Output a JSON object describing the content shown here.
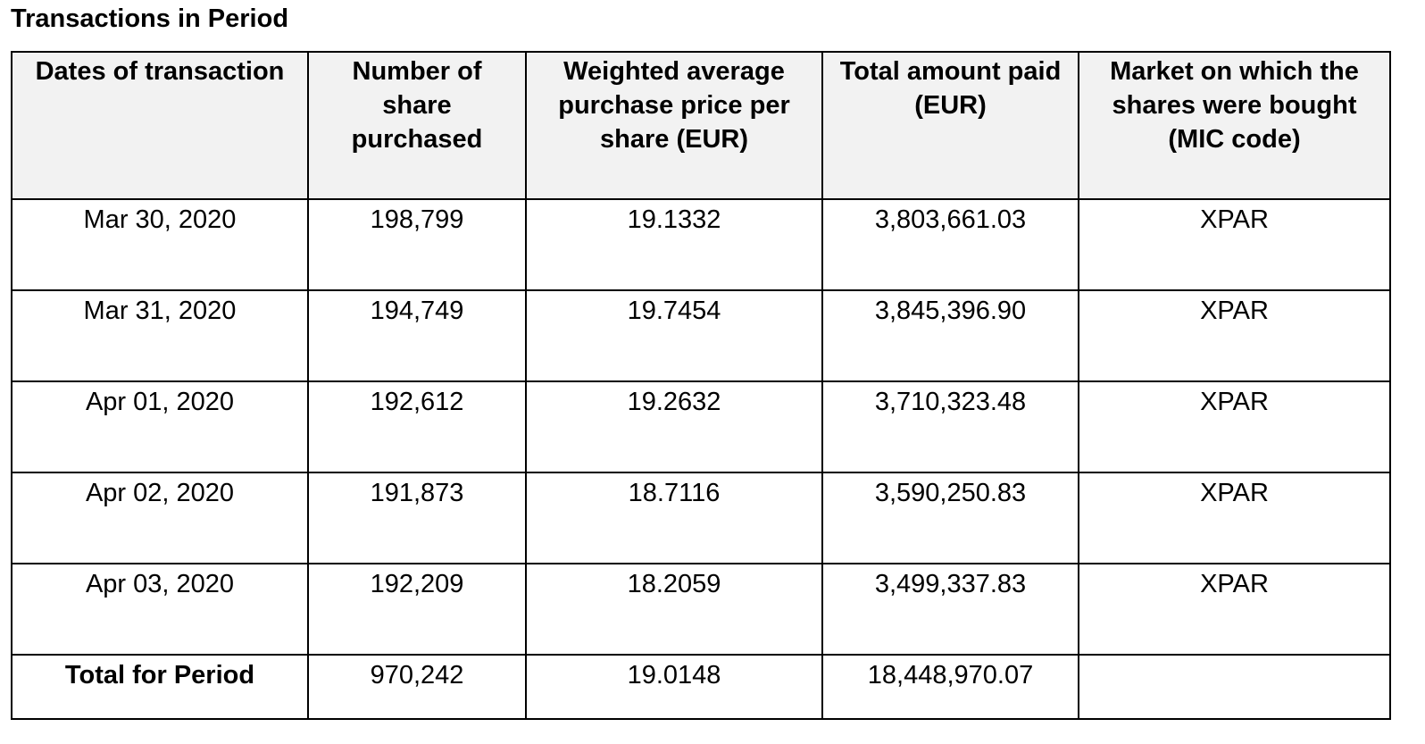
{
  "title": "Transactions in Period",
  "table": {
    "headers": [
      "Dates of transaction",
      "Number of share purchased",
      "Weighted average purchase price per share (EUR)",
      "Total amount paid (EUR)",
      "Market on which the shares were bought (MIC code)"
    ],
    "rows": [
      [
        "Mar 30, 2020",
        "198,799",
        "19.1332",
        "3,803,661.03",
        "XPAR"
      ],
      [
        "Mar 31, 2020",
        "194,749",
        "19.7454",
        "3,845,396.90",
        "XPAR"
      ],
      [
        "Apr 01, 2020",
        "192,612",
        "19.2632",
        "3,710,323.48",
        "XPAR"
      ],
      [
        "Apr 02, 2020",
        "191,873",
        "18.7116",
        "3,590,250.83",
        "XPAR"
      ],
      [
        "Apr 03, 2020",
        "192,209",
        "18.2059",
        "3,499,337.83",
        "XPAR"
      ]
    ],
    "total": [
      "Total for Period",
      "970,242",
      "19.0148",
      "18,448,970.07",
      ""
    ]
  }
}
